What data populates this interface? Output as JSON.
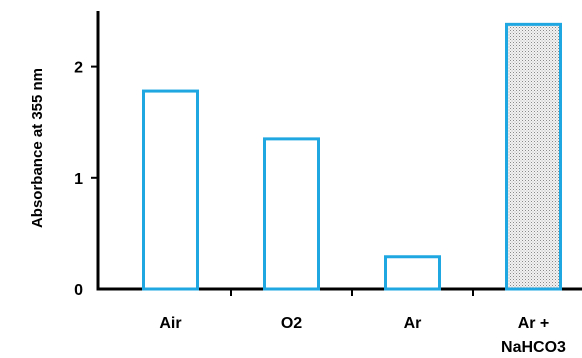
{
  "chart_data": {
    "type": "bar",
    "title": "",
    "xlabel": "",
    "ylabel": "Absorbance at 355 nm",
    "categories": [
      [
        "Air"
      ],
      [
        "O2"
      ],
      [
        "Ar"
      ],
      [
        "Ar +",
        "NaHCO3"
      ]
    ],
    "values": [
      1.78,
      1.35,
      0.29,
      2.38
    ],
    "bar_fill": [
      "none",
      "none",
      "none",
      "dotted"
    ],
    "ylim": [
      0,
      2.5
    ],
    "yticks": [
      "0",
      "1",
      "2"
    ],
    "bar_color": "#1ea7e1",
    "axis_color": "#000000",
    "grid": false,
    "legend": "none"
  }
}
